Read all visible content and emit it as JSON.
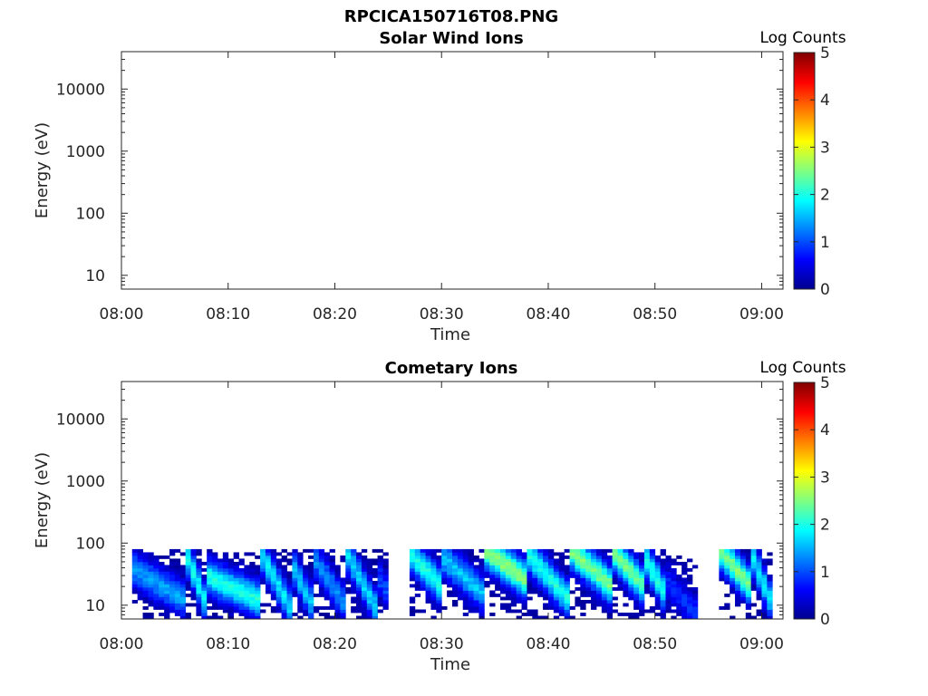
{
  "figure": {
    "title": "RPCICA150716T08.PNG"
  },
  "colormap": {
    "name": "jet",
    "stops": [
      "#00008f",
      "#0000ff",
      "#0080ff",
      "#00ffff",
      "#80ff80",
      "#ffff00",
      "#ff8000",
      "#ff0000",
      "#800000"
    ]
  },
  "chart_data": [
    {
      "type": "heatmap",
      "title": "Solar Wind Ions",
      "xlabel": "Time",
      "ylabel": "Energy (eV)",
      "xlim": [
        "08:00",
        "09:02"
      ],
      "ylim": [
        6,
        40000
      ],
      "y_scale": "log",
      "x_ticks": [
        "08:00",
        "08:10",
        "08:20",
        "08:30",
        "08:40",
        "08:50",
        "09:00"
      ],
      "y_ticks": [
        10,
        100,
        1000,
        10000
      ],
      "y_tick_labels": [
        "10",
        "100",
        "1000",
        "10000"
      ],
      "colorbar": {
        "label": "Log Counts",
        "range": [
          0,
          5
        ],
        "ticks": [
          "0",
          "1",
          "2",
          "3",
          "4",
          "5"
        ]
      },
      "data": []
    },
    {
      "type": "heatmap",
      "title": "Cometary Ions",
      "xlabel": "Time",
      "ylabel": "Energy (eV)",
      "xlim": [
        "08:00",
        "09:02"
      ],
      "ylim": [
        6,
        40000
      ],
      "y_scale": "log",
      "x_ticks": [
        "08:00",
        "08:10",
        "08:20",
        "08:30",
        "08:40",
        "08:50",
        "09:00"
      ],
      "y_ticks": [
        10,
        100,
        1000,
        10000
      ],
      "y_tick_labels": [
        "10",
        "100",
        "1000",
        "10000"
      ],
      "colorbar": {
        "label": "Log Counts",
        "range": [
          0,
          5
        ],
        "ticks": [
          "0",
          "1",
          "2",
          "3",
          "4",
          "5"
        ]
      },
      "data_extent": {
        "time_start": "08:01",
        "time_end": "09:01",
        "energy_max_eV": 80,
        "energy_min_eV": 6
      },
      "data_gaps": [
        [
          "08:25",
          "08:27"
        ],
        [
          "08:54",
          "08:56"
        ]
      ],
      "peak_traces": [
        {
          "start": "08:01",
          "end": "08:06",
          "energy_start_eV": 40,
          "energy_end_eV": 12,
          "log_counts": 1.4
        },
        {
          "start": "08:06",
          "end": "08:08",
          "energy_start_eV": 70,
          "energy_end_eV": 10,
          "log_counts": 1.9
        },
        {
          "start": "08:08",
          "end": "08:13",
          "energy_start_eV": 30,
          "energy_end_eV": 12,
          "log_counts": 2.0
        },
        {
          "start": "08:13",
          "end": "08:16",
          "energy_start_eV": 75,
          "energy_end_eV": 8,
          "log_counts": 1.8
        },
        {
          "start": "08:16",
          "end": "08:18",
          "energy_start_eV": 45,
          "energy_end_eV": 9,
          "log_counts": 1.6
        },
        {
          "start": "08:18",
          "end": "08:21",
          "energy_start_eV": 60,
          "energy_end_eV": 10,
          "log_counts": 1.3
        },
        {
          "start": "08:21",
          "end": "08:24",
          "energy_start_eV": 75,
          "energy_end_eV": 8,
          "log_counts": 1.7
        },
        {
          "start": "08:24",
          "end": "08:25",
          "energy_start_eV": 30,
          "energy_end_eV": 15,
          "log_counts": 1.0
        },
        {
          "start": "08:27",
          "end": "08:30",
          "energy_start_eV": 70,
          "energy_end_eV": 20,
          "log_counts": 2.0
        },
        {
          "start": "08:30",
          "end": "08:34",
          "energy_start_eV": 60,
          "energy_end_eV": 15,
          "log_counts": 1.6
        },
        {
          "start": "08:34",
          "end": "08:38",
          "energy_start_eV": 80,
          "energy_end_eV": 25,
          "log_counts": 2.6
        },
        {
          "start": "08:38",
          "end": "08:42",
          "energy_start_eV": 70,
          "energy_end_eV": 12,
          "log_counts": 2.0
        },
        {
          "start": "08:42",
          "end": "08:46",
          "energy_start_eV": 80,
          "energy_end_eV": 20,
          "log_counts": 2.5
        },
        {
          "start": "08:46",
          "end": "08:49",
          "energy_start_eV": 75,
          "energy_end_eV": 20,
          "log_counts": 2.4
        },
        {
          "start": "08:49",
          "end": "08:51",
          "energy_start_eV": 60,
          "energy_end_eV": 15,
          "log_counts": 2.0
        },
        {
          "start": "08:51",
          "end": "08:54",
          "energy_start_eV": 25,
          "energy_end_eV": 7,
          "log_counts": 0.8
        },
        {
          "start": "08:56",
          "end": "08:59",
          "energy_start_eV": 80,
          "energy_end_eV": 20,
          "log_counts": 2.5
        },
        {
          "start": "08:59",
          "end": "09:01",
          "energy_start_eV": 70,
          "energy_end_eV": 10,
          "log_counts": 1.8
        }
      ]
    }
  ]
}
